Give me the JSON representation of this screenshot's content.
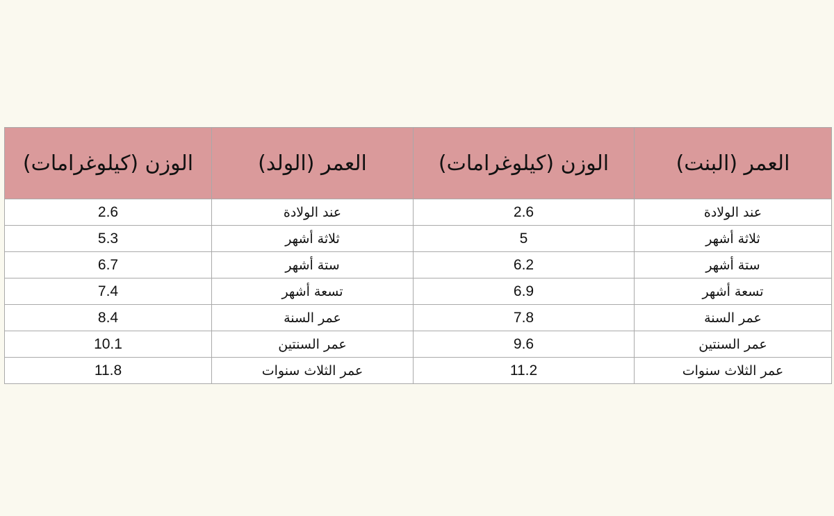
{
  "table": {
    "headers": [
      "العمر (البنت)",
      "الوزن (كيلوغرامات)",
      "العمر (الولد)",
      "الوزن (كيلوغرامات)"
    ],
    "rows": [
      [
        "عند الولادة",
        "2.6",
        "عند الولادة",
        "2.6"
      ],
      [
        "ثلاثة أشهر",
        "5",
        "ثلاثة أشهر",
        "5.3"
      ],
      [
        "ستة أشهر",
        "6.2",
        "ستة أشهر",
        "6.7"
      ],
      [
        "تسعة أشهر",
        "6.9",
        "تسعة أشهر",
        "7.4"
      ],
      [
        "عمر السنة",
        "7.8",
        "عمر السنة",
        "8.4"
      ],
      [
        "عمر السنتين",
        "9.6",
        "عمر السنتين",
        "10.1"
      ],
      [
        "عمر الثلاث سنوات",
        "11.2",
        "عمر الثلاث سنوات",
        "11.8"
      ]
    ]
  },
  "colors": {
    "header_background": "#da9a9b",
    "page_background": "#faf9ef",
    "grid_lines": "#a9a9a9"
  }
}
